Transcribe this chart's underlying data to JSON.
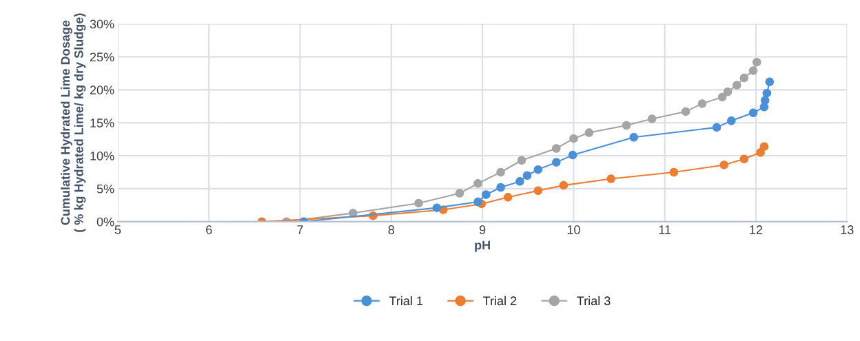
{
  "chart_data": {
    "type": "line",
    "xlabel": "pH",
    "ylabel": "Cumulative Hydrated Lime Dosage\n( % kg Hydrated Lime/ kg dry Sludge)",
    "xlim": [
      5,
      13
    ],
    "xticks": [
      5,
      6,
      7,
      8,
      9,
      10,
      11,
      12,
      13
    ],
    "ylim": [
      0,
      30
    ],
    "yticks": [
      {
        "value": 0,
        "label": "0%"
      },
      {
        "value": 5,
        "label": "5%"
      },
      {
        "value": 10,
        "label": "10%"
      },
      {
        "value": 15,
        "label": "15%"
      },
      {
        "value": 20,
        "label": "20%"
      },
      {
        "value": 25,
        "label": "25%"
      },
      {
        "value": 30,
        "label": "30%"
      }
    ],
    "grid": true,
    "legend": "bottom",
    "marker": "circle",
    "line_style": "solid",
    "series": [
      {
        "name": "Trial 1",
        "color": "#4a90d9",
        "x": [
          7.04,
          8.5,
          8.95,
          9.04,
          9.2,
          9.41,
          9.49,
          9.61,
          9.81,
          9.99,
          10.66,
          11.57,
          11.73,
          11.97,
          12.09,
          12.1,
          12.12,
          12.15
        ],
        "values": [
          0,
          2.1,
          3.0,
          4.1,
          5.2,
          6.1,
          7.0,
          7.9,
          9.0,
          10.1,
          12.8,
          14.3,
          15.3,
          16.5,
          17.4,
          18.4,
          19.5,
          21.2
        ]
      },
      {
        "name": "Trial 2",
        "color": "#ed7d31",
        "x": [
          6.58,
          7.8,
          8.57,
          8.99,
          9.28,
          9.61,
          9.89,
          10.41,
          11.1,
          11.65,
          11.87,
          12.05,
          12.09
        ],
        "values": [
          0,
          0.9,
          1.8,
          2.7,
          3.7,
          4.7,
          5.5,
          6.5,
          7.5,
          8.6,
          9.5,
          10.5,
          11.4
        ]
      },
      {
        "name": "Trial 3",
        "color": "#a5a5a5",
        "x": [
          6.85,
          7.58,
          8.3,
          8.75,
          8.95,
          9.2,
          9.43,
          9.81,
          10.0,
          10.17,
          10.58,
          10.86,
          11.23,
          11.41,
          11.63,
          11.69,
          11.79,
          11.87,
          11.97,
          12.01
        ],
        "values": [
          0,
          1.3,
          2.8,
          4.3,
          5.8,
          7.5,
          9.3,
          11.1,
          12.6,
          13.5,
          14.6,
          15.6,
          16.7,
          17.9,
          18.9,
          19.7,
          20.7,
          21.8,
          22.9,
          24.2
        ]
      }
    ]
  }
}
